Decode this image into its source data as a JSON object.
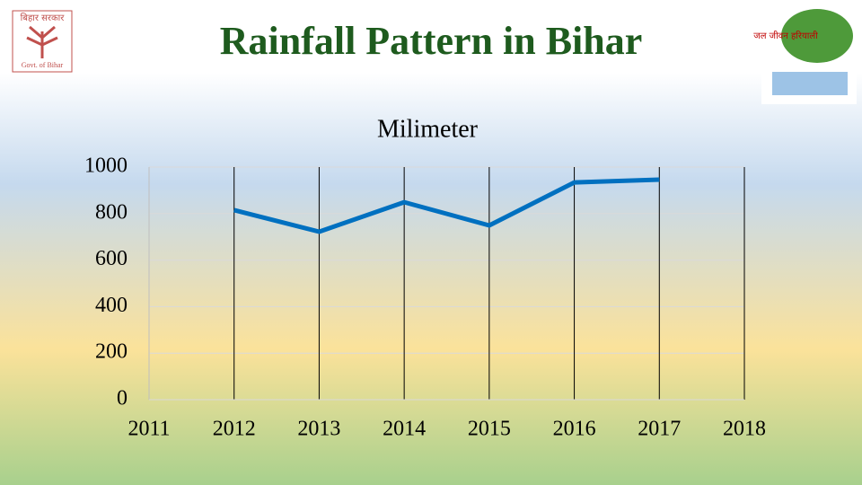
{
  "header": {
    "title": "Rainfall Pattern in Bihar",
    "left_logo": {
      "top_text": "बिहार सरकार",
      "bottom_text": "Govt. of Bihar"
    },
    "right_logo": {
      "text": "जल जीवन हरियाली"
    }
  },
  "chart_data": {
    "type": "line",
    "title": "Milimeter",
    "x": [
      2012,
      2013,
      2014,
      2015,
      2016,
      2017
    ],
    "values": [
      815,
      722,
      849,
      749,
      934,
      946
    ],
    "color": "#0070c0",
    "xlim": [
      2011,
      2018
    ],
    "xticks": [
      2011,
      2012,
      2013,
      2014,
      2015,
      2016,
      2017,
      2018
    ],
    "ylim": [
      0,
      1000
    ],
    "yticks": [
      0,
      200,
      400,
      600,
      800,
      1000
    ],
    "xgrid": true,
    "ygrid": true
  }
}
